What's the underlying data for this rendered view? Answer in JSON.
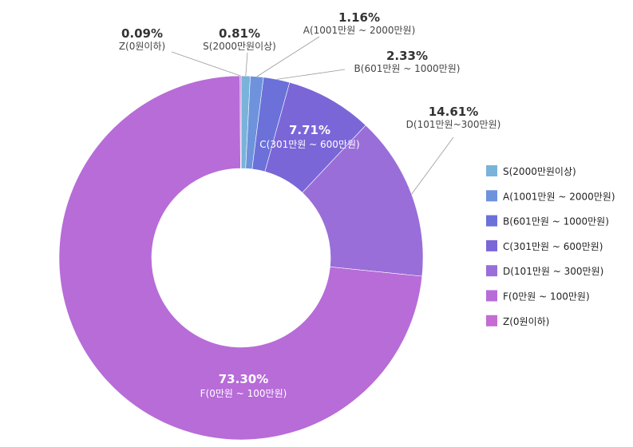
{
  "chart_data": {
    "type": "pie",
    "donut": true,
    "legend_position": "right",
    "categories": [
      "S(2000만원이상)",
      "A(1001만원 ~ 2000만원)",
      "B(601만원 ~ 1000만원)",
      "C(301만원 ~ 600만원)",
      "D(101만원 ~ 300만원)",
      "F(0만원 ~ 100만원)",
      "Z(0원이하)"
    ],
    "values": [
      0.81,
      1.16,
      2.33,
      7.71,
      14.61,
      73.3,
      0.09
    ],
    "value_labels": [
      "0.81%",
      "1.16%",
      "2.33%",
      "7.71%",
      "14.61%",
      "73.30%",
      "0.09%"
    ],
    "slice_labels": [
      "S(2000만원이상)",
      "A(1001만원 ~ 2000만원)",
      "B(601만원 ~ 1000만원)",
      "C(301만원 ~ 600만원)",
      "D(101만원~300만원)",
      "F(0만원 ~ 100만원)",
      "Z(0원이하)"
    ],
    "colors": [
      "#7ab3d9",
      "#6e93dc",
      "#6b71d9",
      "#7b66d8",
      "#9a6ed8",
      "#b76cd8",
      "#c46cd2"
    ]
  }
}
